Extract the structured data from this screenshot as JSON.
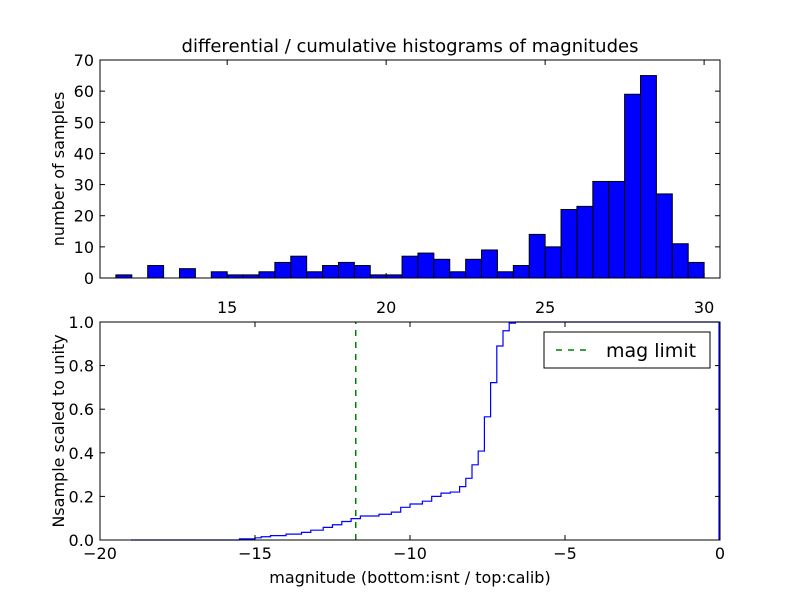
{
  "chart_data": [
    {
      "type": "bar",
      "title": "differential / cumulative histograms of magnitudes",
      "xlabel": "",
      "ylabel": "number of samples",
      "xlim": [
        11.0,
        30.5
      ],
      "ylim": [
        0,
        70
      ],
      "xticks": [
        "15",
        "20",
        "25",
        "30"
      ],
      "yticks": [
        "0",
        "10",
        "20",
        "30",
        "40",
        "50",
        "60",
        "70"
      ],
      "xtick_position": "top",
      "bin_width": 0.5,
      "bin_left_edges": [
        11.5,
        12.0,
        12.5,
        13.0,
        13.5,
        14.0,
        14.5,
        15.0,
        15.5,
        16.0,
        16.5,
        17.0,
        17.5,
        18.0,
        18.5,
        19.0,
        19.5,
        20.0,
        20.5,
        21.0,
        21.5,
        22.0,
        22.5,
        23.0,
        23.5,
        24.0,
        24.5,
        25.0,
        25.5,
        26.0,
        26.5,
        27.0,
        27.5,
        28.0,
        28.5,
        29.0,
        29.5
      ],
      "values": [
        1,
        0,
        4,
        0,
        3,
        0,
        2,
        1,
        1,
        2,
        5,
        7,
        2,
        4,
        5,
        4,
        1,
        1,
        7,
        8,
        6,
        2,
        6,
        9,
        2,
        4,
        14,
        10,
        22,
        23,
        31,
        31,
        59,
        65,
        27,
        11,
        5
      ],
      "colors": {
        "bar_fill": "#0000ff",
        "bar_edge": "#000000"
      }
    },
    {
      "type": "line",
      "step": true,
      "title": "",
      "xlabel": "magnitude (bottom:isnt / top:calib)",
      "ylabel": "Nsample scaled to unity",
      "xlim": [
        -20,
        0
      ],
      "ylim": [
        0.0,
        1.0
      ],
      "xticks": [
        "−20",
        "−15",
        "−10",
        "−5",
        "0"
      ],
      "yticks": [
        "0.0",
        "0.2",
        "0.4",
        "0.6",
        "0.8",
        "1.0"
      ],
      "legend_position": "top-right",
      "series": [
        {
          "name": "",
          "color": "#0000ff",
          "x": [
            -19.0,
            -15.5,
            -15.0,
            -14.8,
            -14.5,
            -14.0,
            -13.5,
            -13.2,
            -12.8,
            -12.5,
            -12.2,
            -11.9,
            -11.6,
            -11.0,
            -10.6,
            -10.3,
            -10.0,
            -9.6,
            -9.3,
            -9.0,
            -8.7,
            -8.4,
            -8.2,
            -8.0,
            -7.8,
            -7.6,
            -7.4,
            -7.2,
            -7.0,
            -6.8,
            -6.6,
            -6.4,
            -0.05
          ],
          "y": [
            0.0,
            0.005,
            0.01,
            0.015,
            0.02,
            0.027,
            0.035,
            0.045,
            0.058,
            0.07,
            0.085,
            0.098,
            0.11,
            0.118,
            0.128,
            0.15,
            0.165,
            0.178,
            0.2,
            0.215,
            0.22,
            0.245,
            0.283,
            0.345,
            0.408,
            0.565,
            0.722,
            0.89,
            0.96,
            0.995,
            1.0,
            1.0,
            1.0
          ]
        },
        {
          "name": "mag limit",
          "color": "#008000",
          "style": "dashed",
          "x": [
            -11.75,
            -11.75
          ],
          "y": [
            0.0,
            1.0
          ]
        }
      ]
    }
  ]
}
